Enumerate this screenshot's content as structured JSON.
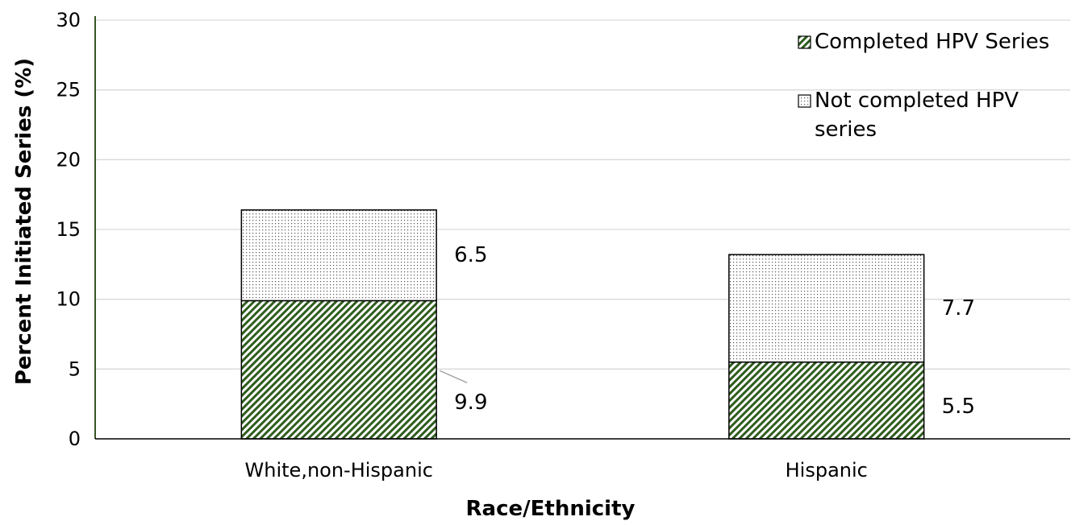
{
  "chart_data": {
    "type": "bar",
    "stacked": true,
    "title": "",
    "xlabel": "Race/Ethnicity",
    "ylabel": "Percent Initiated Series (%)",
    "ylim": [
      0,
      30
    ],
    "yticks": [
      0,
      5,
      10,
      15,
      20,
      25,
      30
    ],
    "grid": true,
    "legend_position": "top-right",
    "categories": [
      "White,non-Hispanic",
      "Hispanic"
    ],
    "series": [
      {
        "name": "Completed HPV Series",
        "values": [
          9.9,
          5.5
        ],
        "labels": [
          "9.9",
          "5.5"
        ],
        "pattern": "diagonal-hatch",
        "color": "#2f5d1e"
      },
      {
        "name": "Not completed HPV series",
        "values": [
          6.5,
          7.7
        ],
        "labels": [
          "6.5",
          "7.7"
        ],
        "pattern": "dots",
        "color": "#555555"
      }
    ],
    "legend_lines": [
      [
        "Completed HPV Series"
      ],
      [
        "Not completed HPV",
        "series"
      ]
    ]
  }
}
